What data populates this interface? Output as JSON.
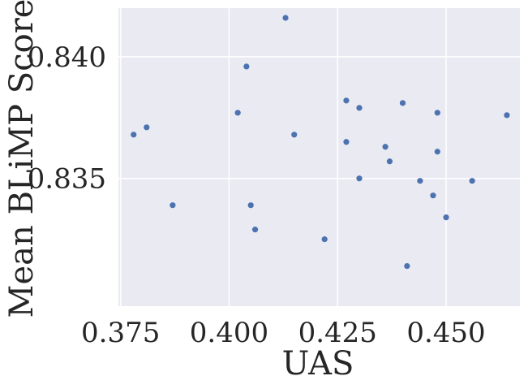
{
  "chart_data": {
    "type": "scatter",
    "title": "",
    "xlabel": "UAS",
    "ylabel": "Mean BLiMP Score",
    "xlim": [
      0.3745,
      0.467
    ],
    "ylim": [
      0.82975,
      0.842
    ],
    "x_ticks": [
      0.375,
      0.4,
      0.425,
      0.45
    ],
    "x_tick_labels": [
      "0.375",
      "0.400",
      "0.425",
      "0.450"
    ],
    "y_ticks": [
      0.835,
      0.84
    ],
    "y_tick_labels": [
      "0.835",
      "0.840"
    ],
    "grid": true,
    "point_color": "#4c72b0",
    "background_color": "#eaeaf2",
    "grid_color": "#ffffff",
    "points": [
      {
        "x": 0.378,
        "y": 0.8368
      },
      {
        "x": 0.381,
        "y": 0.8371
      },
      {
        "x": 0.387,
        "y": 0.8339
      },
      {
        "x": 0.402,
        "y": 0.8377
      },
      {
        "x": 0.404,
        "y": 0.8396
      },
      {
        "x": 0.405,
        "y": 0.8339
      },
      {
        "x": 0.406,
        "y": 0.8329
      },
      {
        "x": 0.413,
        "y": 0.8416
      },
      {
        "x": 0.415,
        "y": 0.8368
      },
      {
        "x": 0.422,
        "y": 0.8325
      },
      {
        "x": 0.427,
        "y": 0.8382
      },
      {
        "x": 0.427,
        "y": 0.8365
      },
      {
        "x": 0.43,
        "y": 0.8379
      },
      {
        "x": 0.43,
        "y": 0.835
      },
      {
        "x": 0.436,
        "y": 0.8363
      },
      {
        "x": 0.437,
        "y": 0.8357
      },
      {
        "x": 0.44,
        "y": 0.8381
      },
      {
        "x": 0.441,
        "y": 0.8314
      },
      {
        "x": 0.444,
        "y": 0.8349
      },
      {
        "x": 0.447,
        "y": 0.8343
      },
      {
        "x": 0.448,
        "y": 0.8377
      },
      {
        "x": 0.448,
        "y": 0.8361
      },
      {
        "x": 0.45,
        "y": 0.8334
      },
      {
        "x": 0.456,
        "y": 0.8349
      },
      {
        "x": 0.464,
        "y": 0.8376
      }
    ]
  }
}
